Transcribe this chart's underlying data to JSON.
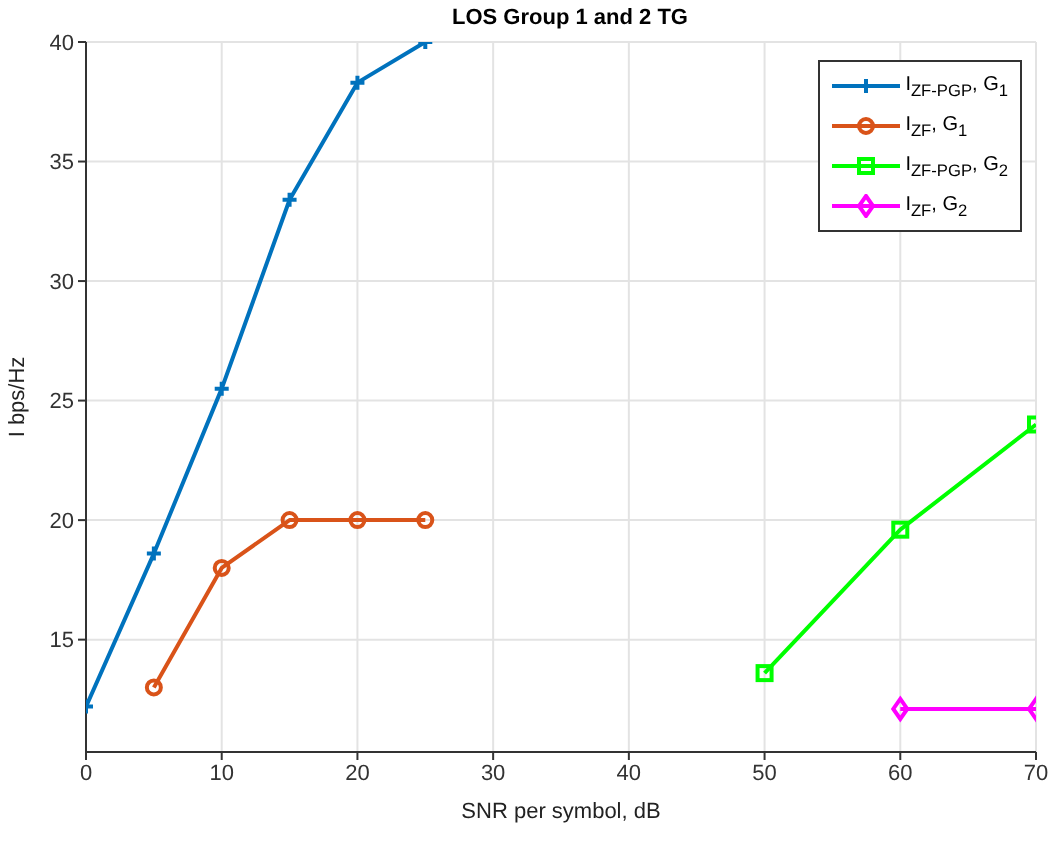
{
  "chart_data": {
    "type": "line",
    "title": "LOS Group 1 and 2 TG",
    "xlabel": "SNR per symbol, dB",
    "ylabel": "I bps/Hz",
    "x": [
      0,
      5,
      10,
      15,
      20,
      25,
      40,
      50,
      60,
      70
    ],
    "series": [
      {
        "name": "I$_{ZF-PGP}$, G$_{1}$",
        "color": "#0072bd",
        "marker": "cross",
        "values": [
          12.2,
          18.6,
          25.5,
          33.4,
          38.3,
          40,
          null,
          null,
          null,
          null
        ]
      },
      {
        "name": "I$_{ZF}$, G$_{1}$",
        "color": "#d95319",
        "marker": "circle",
        "values": [
          null,
          13,
          18,
          20,
          20,
          20,
          null,
          null,
          null,
          null
        ]
      },
      {
        "name": "I$_{ZF-PGP}$, G$_{2}$",
        "color": "#00ff00",
        "marker": "square",
        "values": [
          null,
          null,
          null,
          null,
          null,
          null,
          null,
          13.6,
          19.6,
          24
        ]
      },
      {
        "name": "I$_{ZF}$, G$_{2}$",
        "color": "#ff00ff",
        "marker": "diamond",
        "values": [
          null,
          null,
          null,
          null,
          null,
          null,
          null,
          null,
          12.1,
          12.1
        ]
      }
    ],
    "xlim": [
      0,
      70
    ],
    "xticks": [
      0,
      10,
      20,
      30,
      40,
      50,
      60,
      70
    ],
    "ylim": [
      10.3,
      40
    ],
    "yticks": [
      15,
      20,
      25,
      30,
      35,
      40
    ],
    "grid": true,
    "legend": "top right",
    "line_style": "solid"
  }
}
